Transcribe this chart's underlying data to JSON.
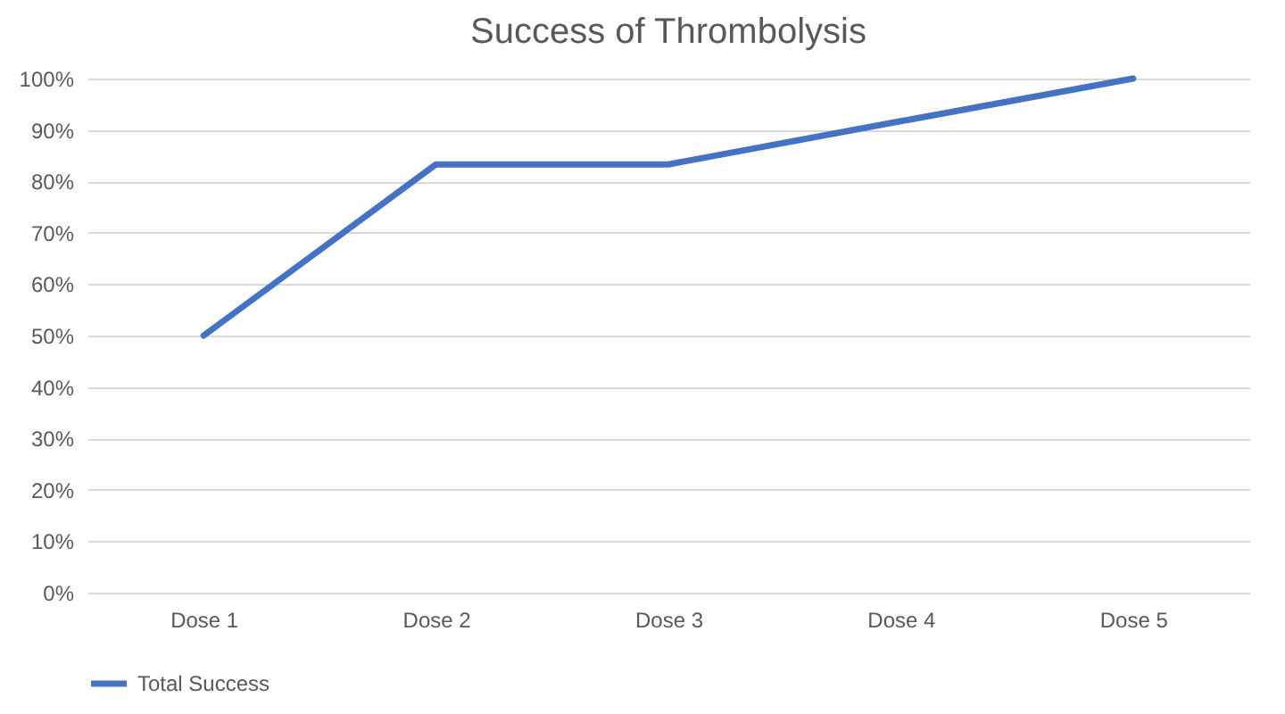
{
  "chart_data": {
    "type": "line",
    "title": "Success of Thrombolysis",
    "categories": [
      "Dose 1",
      "Dose 2",
      "Dose 3",
      "Dose 4",
      "Dose 5"
    ],
    "series": [
      {
        "name": "Total Success",
        "color": "#4472c4",
        "values": [
          50,
          83.3,
          83.3,
          91.7,
          100
        ]
      }
    ],
    "ylim": [
      0,
      100
    ],
    "yticks": [
      {
        "value": 0,
        "label": "0%"
      },
      {
        "value": 10,
        "label": "10%"
      },
      {
        "value": 20,
        "label": "20%"
      },
      {
        "value": 30,
        "label": "30%"
      },
      {
        "value": 40,
        "label": "40%"
      },
      {
        "value": 50,
        "label": "50%"
      },
      {
        "value": 60,
        "label": "60%"
      },
      {
        "value": 70,
        "label": "70%"
      },
      {
        "value": 80,
        "label": "80%"
      },
      {
        "value": 90,
        "label": "90%"
      },
      {
        "value": 100,
        "label": "100%"
      }
    ],
    "grid": "y",
    "legend": "bottom",
    "marker": "none",
    "line_style": "solid"
  }
}
